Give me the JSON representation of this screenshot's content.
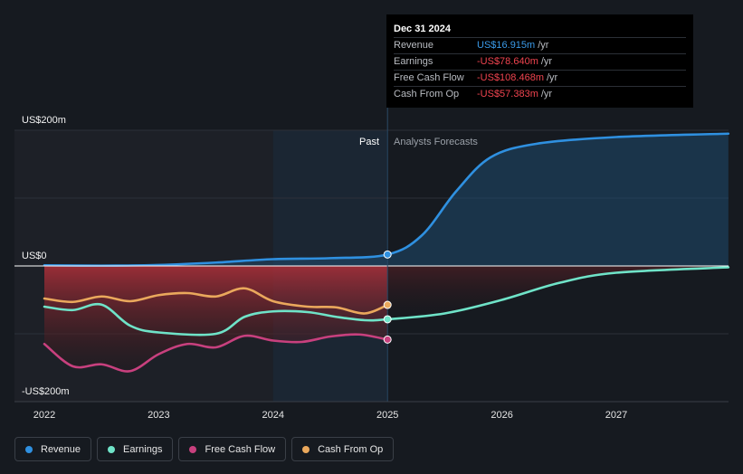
{
  "tooltip": {
    "date": "Dec 31 2024",
    "rows": [
      {
        "label": "Revenue",
        "value": "US$16.915m",
        "unit": "/yr",
        "color": "#3a9ae8"
      },
      {
        "label": "Earnings",
        "value": "-US$78.640m",
        "unit": "/yr",
        "color": "#f0444f"
      },
      {
        "label": "Free Cash Flow",
        "value": "-US$108.468m",
        "unit": "/yr",
        "color": "#f0444f"
      },
      {
        "label": "Cash From Op",
        "value": "-US$57.383m",
        "unit": "/yr",
        "color": "#f0444f"
      }
    ]
  },
  "regions": {
    "past": "Past",
    "forecast": "Analysts Forecasts"
  },
  "legend": [
    {
      "name": "Revenue",
      "color": "#2f90e0"
    },
    {
      "name": "Earnings",
      "color": "#6fe3c8"
    },
    {
      "name": "Free Cash Flow",
      "color": "#c8407e"
    },
    {
      "name": "Cash From Op",
      "color": "#eaa85c"
    }
  ],
  "chart_data": {
    "type": "line",
    "y_unit": "US$ millions",
    "ylim": [
      -200,
      200
    ],
    "xlim": [
      2021.78,
      2027.98
    ],
    "y_tick_labels": [
      {
        "value": 200,
        "label": "US$200m"
      },
      {
        "value": 0,
        "label": "US$0"
      },
      {
        "value": -200,
        "label": "-US$200m"
      }
    ],
    "x_ticks": [
      {
        "value": 2022,
        "label": "2022"
      },
      {
        "value": 2023,
        "label": "2023"
      },
      {
        "value": 2024,
        "label": "2024"
      },
      {
        "value": 2025,
        "label": "2025"
      },
      {
        "value": 2026,
        "label": "2026"
      },
      {
        "value": 2027,
        "label": "2027"
      }
    ],
    "divider_x": 2025,
    "highlight_start_x": 2024,
    "series": [
      {
        "name": "Revenue",
        "color": "#2f90e0",
        "points": [
          [
            2022,
            1
          ],
          [
            2022.5,
            0.5
          ],
          [
            2023,
            1.5
          ],
          [
            2023.5,
            5
          ],
          [
            2024,
            10
          ],
          [
            2024.5,
            11.5
          ],
          [
            2025,
            16.9
          ],
          [
            2025.3,
            45
          ],
          [
            2025.6,
            110
          ],
          [
            2025.9,
            160
          ],
          [
            2026.3,
            180
          ],
          [
            2027,
            190
          ],
          [
            2027.98,
            195
          ]
        ],
        "end_marker_x": 2025
      },
      {
        "name": "Earnings",
        "color": "#6fe3c8",
        "points": [
          [
            2022,
            -60
          ],
          [
            2022.25,
            -65
          ],
          [
            2022.5,
            -57
          ],
          [
            2022.75,
            -88
          ],
          [
            2023,
            -98
          ],
          [
            2023.5,
            -100
          ],
          [
            2023.75,
            -75
          ],
          [
            2024,
            -67
          ],
          [
            2024.3,
            -68
          ],
          [
            2024.55,
            -75
          ],
          [
            2024.8,
            -80
          ],
          [
            2025,
            -78.6
          ],
          [
            2025.5,
            -70
          ],
          [
            2026,
            -50
          ],
          [
            2026.5,
            -25
          ],
          [
            2027,
            -10
          ],
          [
            2027.98,
            -2
          ]
        ],
        "end_marker_x": 2025
      },
      {
        "name": "Free Cash Flow",
        "color": "#c8407e",
        "points": [
          [
            2022,
            -115
          ],
          [
            2022.25,
            -148
          ],
          [
            2022.5,
            -145
          ],
          [
            2022.75,
            -155
          ],
          [
            2023,
            -130
          ],
          [
            2023.25,
            -115
          ],
          [
            2023.5,
            -120
          ],
          [
            2023.75,
            -103
          ],
          [
            2024,
            -110
          ],
          [
            2024.25,
            -112
          ],
          [
            2024.5,
            -104
          ],
          [
            2024.75,
            -101
          ],
          [
            2025,
            -108.5
          ]
        ]
      },
      {
        "name": "Cash From Op",
        "color": "#eaa85c",
        "points": [
          [
            2022,
            -48
          ],
          [
            2022.25,
            -53
          ],
          [
            2022.5,
            -45
          ],
          [
            2022.75,
            -52
          ],
          [
            2023,
            -43
          ],
          [
            2023.25,
            -40
          ],
          [
            2023.5,
            -45
          ],
          [
            2023.75,
            -33
          ],
          [
            2024,
            -52
          ],
          [
            2024.3,
            -60
          ],
          [
            2024.55,
            -61
          ],
          [
            2024.8,
            -70
          ],
          [
            2025,
            -57.4
          ]
        ]
      }
    ]
  }
}
